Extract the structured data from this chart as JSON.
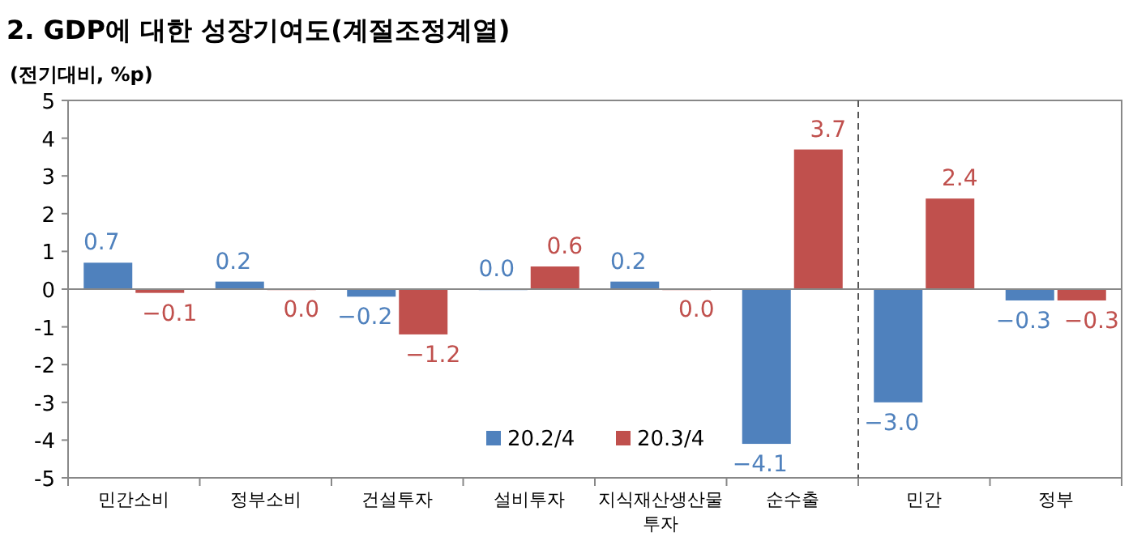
{
  "chart_data": {
    "type": "bar",
    "title": "2. GDP에 대한 성장기여도(계절조정계열)",
    "subtitle": "(전기대비, %p)",
    "categories": [
      "민간소비",
      "정부소비",
      "건설투자",
      "설비투자",
      "지식재산생산물 투자",
      "순수출",
      "민간",
      "정부"
    ],
    "series": [
      {
        "name": "20.2/4",
        "color": "#4f81bd",
        "values": [
          0.7,
          0.2,
          -0.2,
          0.0,
          0.2,
          -4.1,
          -3.0,
          -0.3
        ],
        "value_labels": [
          "0.7",
          "0.2",
          "−0.2",
          "0.0",
          "0.2",
          "−4.1",
          "−3.0",
          "−0.3"
        ]
      },
      {
        "name": "20.3/4",
        "color": "#c0504d",
        "values": [
          -0.1,
          0.0,
          -1.2,
          0.6,
          0.0,
          3.7,
          2.4,
          -0.3
        ],
        "value_labels": [
          "−0.1",
          "0.0",
          "−1.2",
          "0.6",
          "0.0",
          "3.7",
          "2.4",
          "−0.3"
        ]
      }
    ],
    "ylim": [
      -5,
      5
    ],
    "yticks": [
      -5,
      -4,
      -3,
      -2,
      -1,
      0,
      1,
      2,
      3,
      4,
      5
    ],
    "legend": "bottom"
  }
}
